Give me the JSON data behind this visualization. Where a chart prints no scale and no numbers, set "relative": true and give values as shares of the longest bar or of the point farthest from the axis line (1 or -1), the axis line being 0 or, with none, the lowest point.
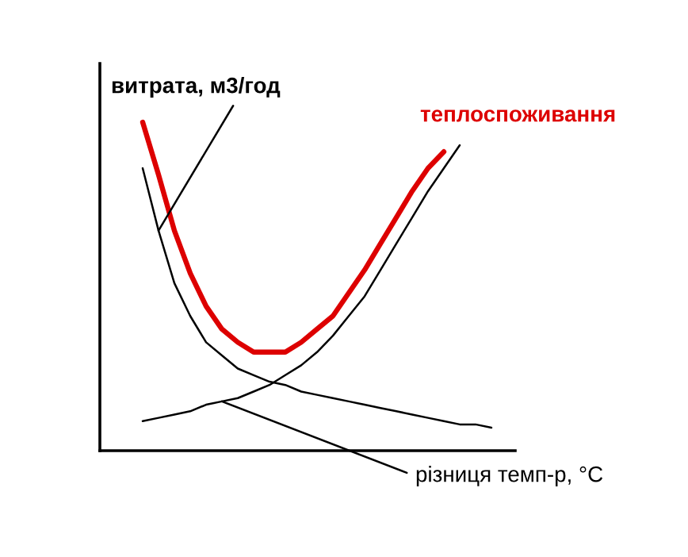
{
  "chart_data": {
    "type": "line",
    "relative": true,
    "categories": [
      null,
      null,
      null,
      null,
      null,
      null,
      null,
      null,
      null,
      null,
      null,
      null,
      null,
      null,
      null,
      null,
      null,
      null,
      null,
      null,
      null,
      null,
      null,
      null
    ],
    "series": [
      {
        "name": "витрата, м3/год",
        "color": "#000000",
        "values": [
          0.86,
          0.67,
          0.51,
          0.41,
          0.33,
          0.29,
          0.25,
          0.23,
          0.21,
          0.2,
          0.18,
          0.17,
          0.16,
          0.15,
          0.14,
          0.13,
          0.12,
          0.11,
          0.1,
          0.09,
          0.08,
          0.08,
          0.07,
          null
        ]
      },
      {
        "name": "теплоспоживання",
        "color": "#dd0000",
        "values": [
          1.0,
          0.84,
          0.67,
          0.54,
          0.44,
          0.37,
          0.33,
          0.3,
          0.3,
          0.3,
          0.33,
          0.37,
          0.41,
          0.48,
          0.55,
          0.63,
          0.71,
          0.79,
          0.86,
          0.91,
          null,
          null,
          null,
          null
        ]
      },
      {
        "name": "різниця темп-р, °C",
        "color": "#000000",
        "values": [
          0.09,
          0.1,
          0.11,
          0.12,
          0.14,
          0.15,
          0.16,
          0.18,
          0.2,
          0.23,
          0.26,
          0.3,
          0.35,
          0.41,
          0.47,
          0.55,
          0.63,
          0.71,
          0.79,
          0.86,
          0.93,
          null,
          null,
          null
        ]
      }
    ]
  }
}
